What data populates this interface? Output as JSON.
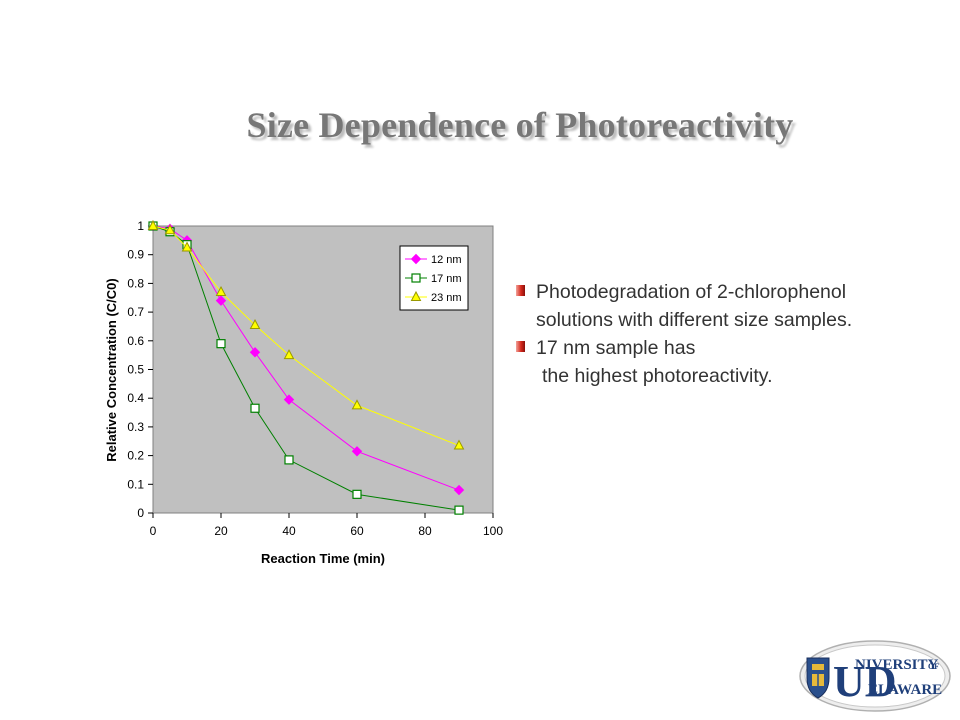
{
  "slide": {
    "title": "Size Dependence of Photoreactivity",
    "bullets": [
      {
        "lines": [
          "Photodegradation of 2-chlorophenol",
          "solutions with different size samples."
        ]
      },
      {
        "lines": [
          "17 nm sample has",
          "the highest photoreactivity."
        ]
      }
    ],
    "logo": {
      "text_top": "NIVERSITY",
      "text_of": "OF",
      "text_bottom": "ELAWARE",
      "initials": "UD",
      "icon": "university-of-delaware-logo"
    }
  },
  "chart_data": {
    "type": "line",
    "xlabel": "Reaction Time (min)",
    "ylabel": "Relative Concentration (C/C0)",
    "xlim": [
      0,
      100
    ],
    "ylim": [
      0,
      1
    ],
    "xticks": [
      0,
      20,
      40,
      60,
      80,
      100
    ],
    "yticks": [
      0,
      0.1,
      0.2,
      0.3,
      0.4,
      0.5,
      0.6,
      0.7,
      0.8,
      0.9,
      1
    ],
    "plot_background": "#c0c0c0",
    "grid": false,
    "legend_position": "top-right",
    "series": [
      {
        "name": "12 nm",
        "color": "#ff00ff",
        "marker": "diamond",
        "x": [
          0,
          5,
          10,
          20,
          30,
          40,
          60,
          90
        ],
        "y": [
          1.0,
          0.99,
          0.95,
          0.74,
          0.56,
          0.395,
          0.215,
          0.08
        ]
      },
      {
        "name": "17 nm",
        "color": "#008000",
        "marker": "square",
        "x": [
          0,
          5,
          10,
          20,
          30,
          40,
          60,
          90
        ],
        "y": [
          1.0,
          0.98,
          0.935,
          0.59,
          0.365,
          0.185,
          0.065,
          0.01
        ]
      },
      {
        "name": "23 nm",
        "color": "#ffff00",
        "marker_stroke": "#999900",
        "marker": "triangle",
        "x": [
          0,
          5,
          10,
          20,
          30,
          40,
          60,
          90
        ],
        "y": [
          1.0,
          0.985,
          0.925,
          0.77,
          0.655,
          0.55,
          0.375,
          0.235
        ]
      }
    ]
  }
}
